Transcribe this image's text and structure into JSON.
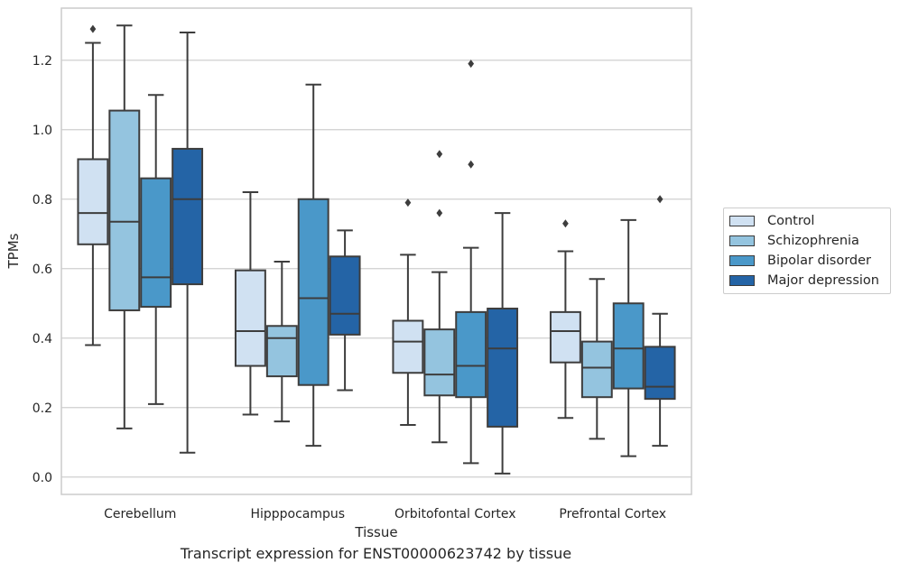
{
  "caption": "Transcript expression for ENST00000623742 by tissue",
  "colors": {
    "Control": "#d0e1f2",
    "Schizophrenia": "#94c4df",
    "Bipolar disorder": "#4a98c9",
    "Major depression": "#2464a6",
    "line": "#3d3d3d",
    "grid": "#cfcfcf",
    "frame": "#cccccc"
  },
  "chart_data": {
    "type": "box",
    "xlabel": "Tissue",
    "ylabel": "TPMs",
    "ylim": [
      -0.05,
      1.35
    ],
    "yticks": [
      0.0,
      0.2,
      0.4,
      0.6,
      0.8,
      1.0,
      1.2
    ],
    "ytick_labels": [
      "0.0",
      "0.2",
      "0.4",
      "0.6",
      "0.8",
      "1.0",
      "1.2"
    ],
    "grid": "horizontal",
    "legend_position": "right",
    "categories": [
      "Cerebellum",
      "Hipppocampus",
      "Orbitofontal Cortex",
      "Prefrontal Cortex"
    ],
    "series": [
      {
        "name": "Control",
        "boxes": [
          {
            "whisker_low": 0.38,
            "q1": 0.67,
            "median": 0.76,
            "q3": 0.915,
            "whisker_high": 1.25,
            "outliers": [
              1.29
            ]
          },
          {
            "whisker_low": 0.18,
            "q1": 0.32,
            "median": 0.42,
            "q3": 0.595,
            "whisker_high": 0.82,
            "outliers": []
          },
          {
            "whisker_low": 0.15,
            "q1": 0.3,
            "median": 0.39,
            "q3": 0.45,
            "whisker_high": 0.64,
            "outliers": [
              0.79
            ]
          },
          {
            "whisker_low": 0.17,
            "q1": 0.33,
            "median": 0.42,
            "q3": 0.475,
            "whisker_high": 0.65,
            "outliers": [
              0.73
            ]
          }
        ]
      },
      {
        "name": "Schizophrenia",
        "boxes": [
          {
            "whisker_low": 0.14,
            "q1": 0.48,
            "median": 0.735,
            "q3": 1.055,
            "whisker_high": 1.3,
            "outliers": []
          },
          {
            "whisker_low": 0.16,
            "q1": 0.29,
            "median": 0.4,
            "q3": 0.435,
            "whisker_high": 0.62,
            "outliers": []
          },
          {
            "whisker_low": 0.1,
            "q1": 0.235,
            "median": 0.295,
            "q3": 0.425,
            "whisker_high": 0.59,
            "outliers": [
              0.76,
              0.93
            ]
          },
          {
            "whisker_low": 0.11,
            "q1": 0.23,
            "median": 0.315,
            "q3": 0.39,
            "whisker_high": 0.57,
            "outliers": []
          }
        ]
      },
      {
        "name": "Bipolar disorder",
        "boxes": [
          {
            "whisker_low": 0.21,
            "q1": 0.49,
            "median": 0.575,
            "q3": 0.86,
            "whisker_high": 1.1,
            "outliers": []
          },
          {
            "whisker_low": 0.09,
            "q1": 0.265,
            "median": 0.515,
            "q3": 0.8,
            "whisker_high": 1.13,
            "outliers": []
          },
          {
            "whisker_low": 0.04,
            "q1": 0.23,
            "median": 0.32,
            "q3": 0.475,
            "whisker_high": 0.66,
            "outliers": [
              0.9,
              1.19
            ]
          },
          {
            "whisker_low": 0.06,
            "q1": 0.255,
            "median": 0.37,
            "q3": 0.5,
            "whisker_high": 0.74,
            "outliers": []
          }
        ]
      },
      {
        "name": "Major depression",
        "boxes": [
          {
            "whisker_low": 0.07,
            "q1": 0.555,
            "median": 0.8,
            "q3": 0.945,
            "whisker_high": 1.28,
            "outliers": []
          },
          {
            "whisker_low": 0.25,
            "q1": 0.41,
            "median": 0.47,
            "q3": 0.635,
            "whisker_high": 0.71,
            "outliers": []
          },
          {
            "whisker_low": 0.01,
            "q1": 0.145,
            "median": 0.37,
            "q3": 0.485,
            "whisker_high": 0.76,
            "outliers": []
          },
          {
            "whisker_low": 0.09,
            "q1": 0.225,
            "median": 0.26,
            "q3": 0.375,
            "whisker_high": 0.47,
            "outliers": [
              0.8
            ]
          }
        ]
      }
    ]
  }
}
